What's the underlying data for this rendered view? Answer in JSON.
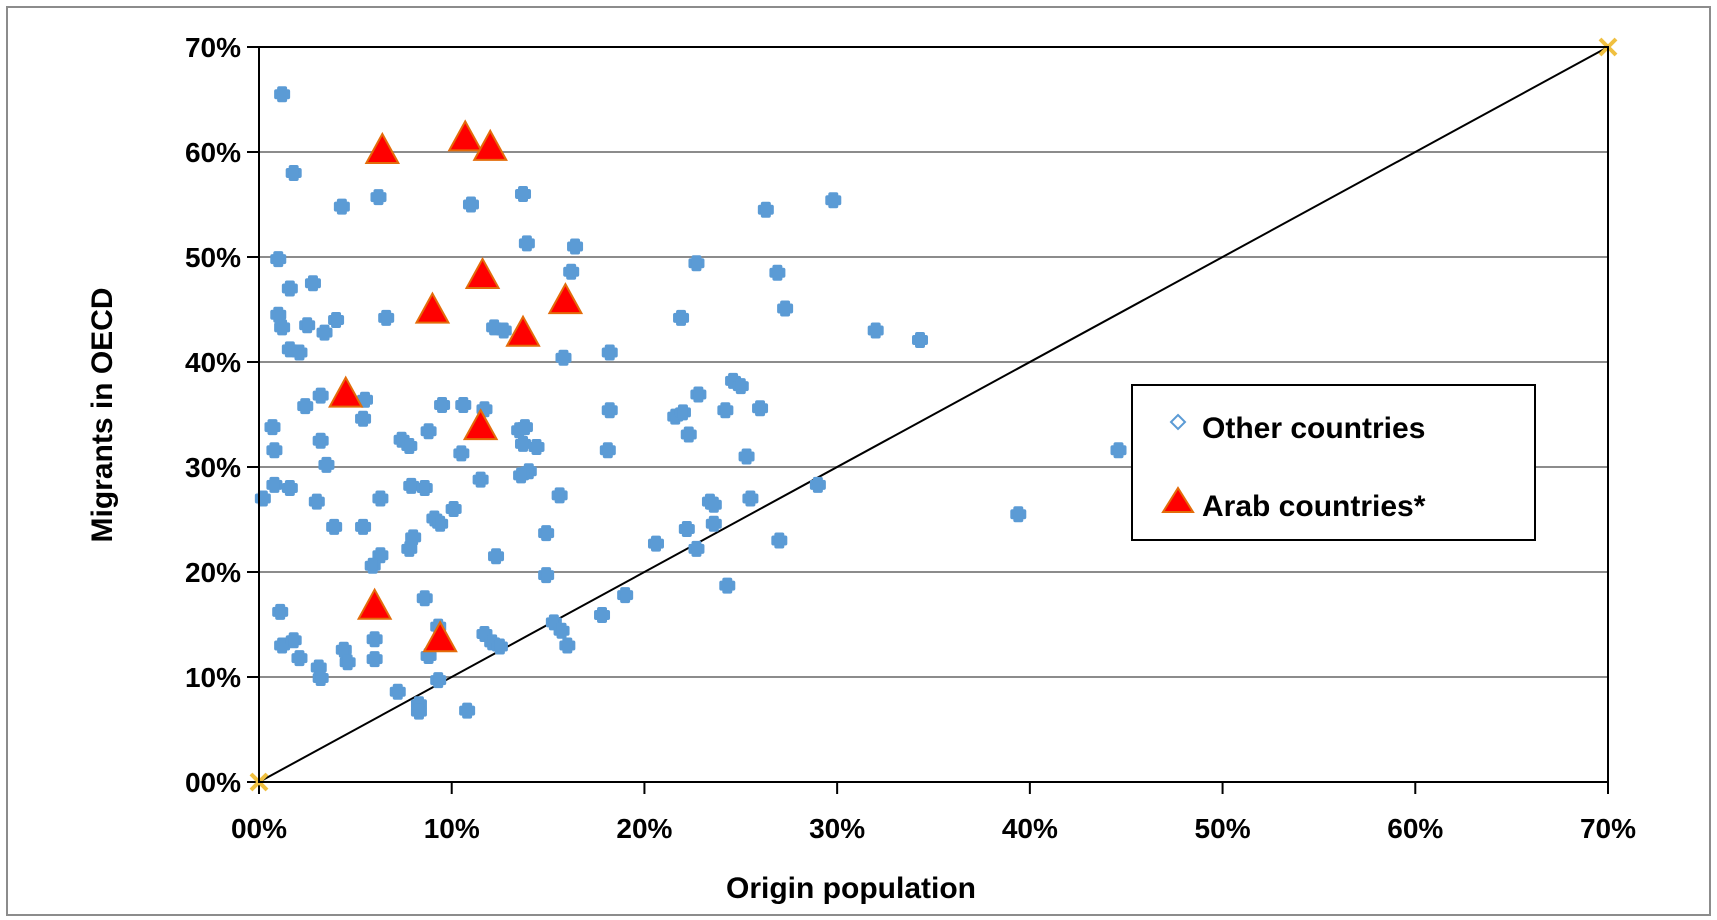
{
  "chart_data": {
    "type": "scatter",
    "xlabel": "Origin population",
    "ylabel": "Migrants in OECD",
    "xlim": [
      0,
      70
    ],
    "ylim": [
      0,
      70
    ],
    "x_ticks": [
      "00%",
      "10%",
      "20%",
      "30%",
      "40%",
      "50%",
      "60%",
      "70%"
    ],
    "y_ticks": [
      "00%",
      "10%",
      "20%",
      "30%",
      "40%",
      "50%",
      "60%",
      "70%"
    ],
    "grid": "horizontal",
    "legend_position": "right",
    "diagonal_line": [
      [
        0,
        0
      ],
      [
        70,
        70
      ]
    ],
    "series": [
      {
        "name": "Other countries",
        "marker": "diamond",
        "color": "#5b9bd5",
        "points": [
          [
            1.2,
            65.5
          ],
          [
            1.8,
            58.0
          ],
          [
            1.0,
            49.8
          ],
          [
            1.6,
            47.0
          ],
          [
            2.8,
            47.5
          ],
          [
            1.0,
            44.5
          ],
          [
            1.2,
            43.3
          ],
          [
            2.5,
            43.5
          ],
          [
            4.0,
            44.0
          ],
          [
            1.6,
            41.2
          ],
          [
            2.1,
            40.9
          ],
          [
            3.4,
            42.8
          ],
          [
            4.3,
            54.8
          ],
          [
            6.2,
            55.7
          ],
          [
            6.6,
            44.2
          ],
          [
            11.0,
            55.0
          ],
          [
            13.7,
            56.0
          ],
          [
            13.9,
            51.3
          ],
          [
            16.4,
            51.0
          ],
          [
            16.2,
            48.6
          ],
          [
            12.2,
            43.3
          ],
          [
            12.7,
            43.0
          ],
          [
            15.8,
            40.4
          ],
          [
            18.2,
            40.9
          ],
          [
            21.9,
            44.2
          ],
          [
            22.7,
            49.4
          ],
          [
            26.3,
            54.5
          ],
          [
            29.8,
            55.4
          ],
          [
            26.9,
            48.5
          ],
          [
            27.3,
            45.1
          ],
          [
            32.0,
            43.0
          ],
          [
            34.3,
            42.1
          ],
          [
            0.7,
            33.8
          ],
          [
            0.8,
            31.6
          ],
          [
            0.8,
            28.3
          ],
          [
            1.6,
            28.0
          ],
          [
            0.2,
            27.0
          ],
          [
            1.1,
            16.2
          ],
          [
            1.2,
            13.0
          ],
          [
            1.8,
            13.5
          ],
          [
            2.1,
            11.8
          ],
          [
            2.4,
            35.8
          ],
          [
            3.2,
            36.8
          ],
          [
            3.2,
            32.5
          ],
          [
            3.5,
            30.2
          ],
          [
            3.0,
            26.7
          ],
          [
            3.9,
            24.3
          ],
          [
            5.4,
            24.3
          ],
          [
            5.4,
            34.6
          ],
          [
            5.5,
            36.4
          ],
          [
            6.3,
            27.0
          ],
          [
            6.3,
            21.6
          ],
          [
            5.9,
            20.6
          ],
          [
            6.0,
            13.6
          ],
          [
            6.0,
            11.7
          ],
          [
            4.4,
            12.6
          ],
          [
            4.6,
            11.4
          ],
          [
            3.1,
            10.9
          ],
          [
            3.2,
            9.9
          ],
          [
            7.4,
            32.6
          ],
          [
            7.8,
            32.0
          ],
          [
            8.8,
            33.4
          ],
          [
            9.5,
            35.9
          ],
          [
            10.6,
            35.9
          ],
          [
            10.5,
            31.3
          ],
          [
            7.9,
            28.2
          ],
          [
            8.6,
            28.0
          ],
          [
            9.1,
            25.1
          ],
          [
            9.4,
            24.6
          ],
          [
            10.1,
            26.0
          ],
          [
            8.0,
            23.3
          ],
          [
            7.8,
            22.2
          ],
          [
            8.6,
            17.5
          ],
          [
            8.8,
            12.0
          ],
          [
            9.3,
            14.8
          ],
          [
            9.3,
            9.7
          ],
          [
            7.2,
            8.6
          ],
          [
            8.3,
            7.4
          ],
          [
            8.3,
            6.7
          ],
          [
            10.8,
            6.8
          ],
          [
            11.7,
            35.5
          ],
          [
            13.5,
            33.5
          ],
          [
            13.8,
            33.8
          ],
          [
            13.7,
            32.2
          ],
          [
            14.4,
            31.9
          ],
          [
            14.0,
            29.6
          ],
          [
            13.6,
            29.2
          ],
          [
            11.5,
            28.8
          ],
          [
            15.6,
            27.3
          ],
          [
            12.3,
            21.5
          ],
          [
            14.9,
            23.7
          ],
          [
            14.9,
            19.7
          ],
          [
            11.7,
            14.1
          ],
          [
            12.1,
            13.3
          ],
          [
            12.5,
            12.9
          ],
          [
            15.3,
            15.2
          ],
          [
            15.7,
            14.4
          ],
          [
            16.0,
            13.0
          ],
          [
            17.8,
            15.9
          ],
          [
            18.1,
            31.6
          ],
          [
            18.2,
            35.4
          ],
          [
            19.0,
            17.8
          ],
          [
            20.6,
            22.7
          ],
          [
            21.6,
            34.8
          ],
          [
            22.0,
            35.2
          ],
          [
            22.3,
            33.1
          ],
          [
            22.2,
            24.1
          ],
          [
            22.7,
            22.2
          ],
          [
            22.8,
            36.9
          ],
          [
            24.2,
            35.4
          ],
          [
            24.6,
            38.2
          ],
          [
            25.0,
            37.7
          ],
          [
            26.0,
            35.6
          ],
          [
            25.3,
            31.0
          ],
          [
            23.4,
            26.7
          ],
          [
            23.6,
            26.4
          ],
          [
            23.6,
            24.6
          ],
          [
            25.5,
            27.0
          ],
          [
            24.3,
            18.7
          ],
          [
            27.0,
            23.0
          ],
          [
            29.0,
            28.3
          ],
          [
            39.4,
            25.5
          ],
          [
            44.6,
            31.6
          ]
        ]
      },
      {
        "name": "Arab countries*",
        "marker": "triangle",
        "color": "#ff0000",
        "points": [
          [
            6.4,
            60.0
          ],
          [
            10.7,
            61.2
          ],
          [
            12.0,
            60.3
          ],
          [
            11.6,
            48.1
          ],
          [
            9.0,
            44.8
          ],
          [
            13.7,
            42.6
          ],
          [
            15.9,
            45.7
          ],
          [
            4.5,
            36.8
          ],
          [
            11.5,
            33.7
          ],
          [
            6.0,
            16.6
          ],
          [
            9.4,
            13.5
          ]
        ]
      }
    ]
  },
  "colors": {
    "axis": "#000000",
    "grid": "#8c8c8c",
    "other_marker": "#5b9bd5",
    "arab_fill": "#ff0000",
    "arab_edge": "#e36c0a",
    "origin_marker": "#f0c040"
  }
}
